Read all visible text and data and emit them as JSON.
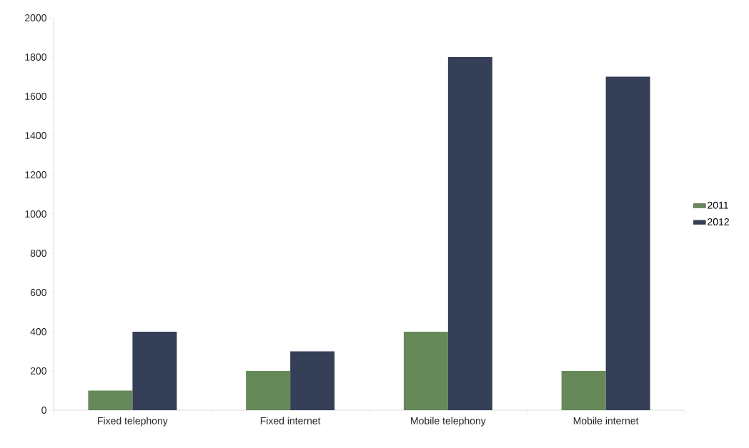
{
  "chart_data": {
    "type": "bar",
    "categories": [
      "Fixed telephony",
      "Fixed internet",
      "Mobile telephony",
      "Mobile internet"
    ],
    "series": [
      {
        "name": "2011",
        "color": "#66895a",
        "values": [
          100,
          200,
          400,
          200
        ]
      },
      {
        "name": "2012",
        "color": "#363f58",
        "values": [
          400,
          300,
          1800,
          1700
        ]
      }
    ],
    "ylim": [
      0,
      2000
    ],
    "yticks": [
      0,
      200,
      400,
      600,
      800,
      1000,
      1200,
      1400,
      1600,
      1800,
      2000
    ],
    "grid": false,
    "legend": "right"
  }
}
